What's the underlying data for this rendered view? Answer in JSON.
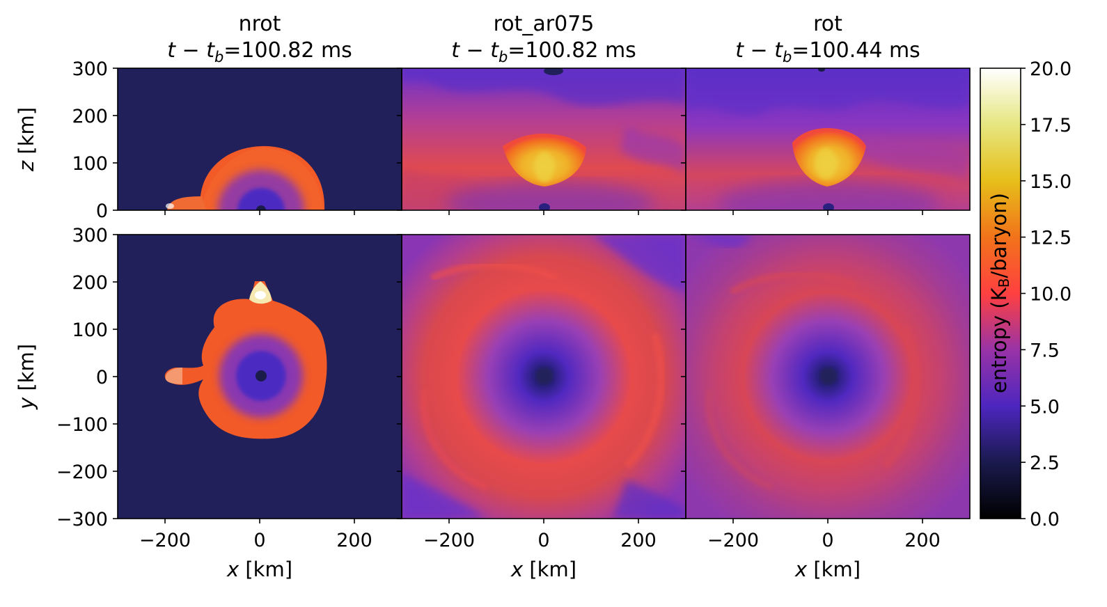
{
  "chart_data": {
    "type": "heatmap",
    "panels_titles": [
      {
        "name": "nrot",
        "time": "100.82 ms"
      },
      {
        "name": "rot_ar075",
        "time": "100.82 ms"
      },
      {
        "name": "rot",
        "time": "100.44 ms"
      }
    ],
    "time_prefix_t": "t",
    "time_minus": "−",
    "time_tb_base": "t",
    "time_tb_sub": "b",
    "time_eq": "=",
    "x_axis": {
      "var": "x",
      "unit": " [km]",
      "range": [
        -300,
        300
      ],
      "ticks": [
        -200,
        0,
        200
      ],
      "tick_labels": [
        "−200",
        "0",
        "200"
      ]
    },
    "z_axis": {
      "var": "z",
      "unit": " [km]",
      "range": [
        0,
        300
      ],
      "ticks": [
        0,
        100,
        200,
        300
      ],
      "tick_labels": [
        "0",
        "100",
        "200",
        "300"
      ]
    },
    "y_axis": {
      "var": "y",
      "unit": " [km]",
      "range": [
        -300,
        300
      ],
      "ticks": [
        -300,
        -200,
        -100,
        0,
        100,
        200,
        300
      ],
      "tick_labels": [
        "−300",
        "−200",
        "−100",
        "0",
        "100",
        "200",
        "300"
      ]
    },
    "colorbar": {
      "label_prefix": "entropy (K",
      "label_sub": "B",
      "label_suffix": "/baryon)",
      "range": [
        0,
        20
      ],
      "ticks": [
        0,
        2.5,
        5,
        7.5,
        10,
        12.5,
        15,
        17.5,
        20
      ],
      "tick_labels": [
        "0.0",
        "2.5",
        "5.0",
        "7.5",
        "10.0",
        "12.5",
        "15.0",
        "17.5",
        "20.0"
      ],
      "colormap": "CMRmap",
      "stops": [
        "#000000",
        "#1a1a4d",
        "#4d26bf",
        "#9933a6",
        "#ff4040",
        "#f2731a",
        "#e6bf1a",
        "#e6e680",
        "#ffffff"
      ]
    }
  }
}
